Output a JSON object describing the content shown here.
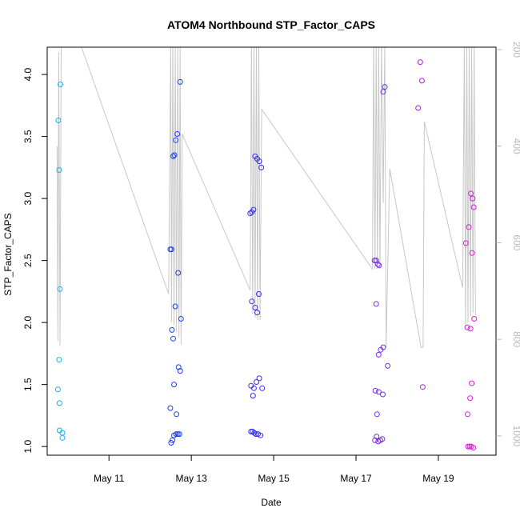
{
  "chart_data": {
    "type": "scatter",
    "title": "ATOM4 Northbound STP_Factor_CAPS",
    "xlabel": "Date",
    "ylabel": "STP_Factor_CAPS",
    "xlim": [
      9.5,
      20.4
    ],
    "ylim": [
      0.93,
      4.22
    ],
    "y2lim": [
      1040,
      195
    ],
    "x_ticks": [
      11,
      13,
      15,
      17,
      19
    ],
    "x_tick_labels": [
      "May 11",
      "May 13",
      "May 15",
      "May 17",
      "May 19"
    ],
    "y_ticks": [
      1.0,
      1.5,
      2.0,
      2.5,
      3.0,
      3.5,
      4.0
    ],
    "y_tick_labels": [
      "1.0",
      "1.5",
      "2.0",
      "2.5",
      "3.0",
      "3.5",
      "4.0"
    ],
    "y2_ticks": [
      200,
      400,
      600,
      800,
      1000
    ],
    "y2_tick_labels": [
      "200",
      "400",
      "600",
      "800",
      "1000"
    ],
    "colors": {
      "line": "#c8c8c8",
      "right_axis": "#b8b8b8",
      "day_palette": [
        "#19aeee",
        "#1f3fee",
        "#3a2ef0",
        "#7a2ee0",
        "#b020e0",
        "#d81ed8"
      ]
    },
    "series": [
      {
        "name": "points",
        "points": [
          {
            "x": 9.77,
            "y": 3.63,
            "d": 0
          },
          {
            "x": 9.79,
            "y": 3.23,
            "d": 0
          },
          {
            "x": 9.82,
            "y": 3.92,
            "d": 0
          },
          {
            "x": 9.81,
            "y": 2.27,
            "d": 0
          },
          {
            "x": 9.79,
            "y": 1.7,
            "d": 0
          },
          {
            "x": 9.76,
            "y": 1.46,
            "d": 0
          },
          {
            "x": 9.8,
            "y": 1.35,
            "d": 0
          },
          {
            "x": 9.8,
            "y": 1.13,
            "d": 0
          },
          {
            "x": 9.87,
            "y": 1.11,
            "d": 0
          },
          {
            "x": 9.87,
            "y": 1.07,
            "d": 0
          },
          {
            "x": 12.49,
            "y": 2.59,
            "d": 1
          },
          {
            "x": 12.52,
            "y": 2.59,
            "d": 1
          },
          {
            "x": 12.53,
            "y": 1.94,
            "d": 1
          },
          {
            "x": 12.56,
            "y": 3.34,
            "d": 1
          },
          {
            "x": 12.59,
            "y": 3.35,
            "d": 1
          },
          {
            "x": 12.62,
            "y": 3.47,
            "d": 1
          },
          {
            "x": 12.66,
            "y": 3.52,
            "d": 1
          },
          {
            "x": 12.73,
            "y": 3.94,
            "d": 1
          },
          {
            "x": 12.56,
            "y": 1.87,
            "d": 1
          },
          {
            "x": 12.61,
            "y": 2.13,
            "d": 1
          },
          {
            "x": 12.68,
            "y": 2.4,
            "d": 1
          },
          {
            "x": 12.75,
            "y": 2.03,
            "d": 1
          },
          {
            "x": 12.69,
            "y": 1.64,
            "d": 1
          },
          {
            "x": 12.73,
            "y": 1.61,
            "d": 1
          },
          {
            "x": 12.58,
            "y": 1.5,
            "d": 1
          },
          {
            "x": 12.49,
            "y": 1.31,
            "d": 1
          },
          {
            "x": 12.64,
            "y": 1.26,
            "d": 1
          },
          {
            "x": 12.51,
            "y": 1.03,
            "d": 1
          },
          {
            "x": 12.54,
            "y": 1.05,
            "d": 1
          },
          {
            "x": 12.58,
            "y": 1.09,
            "d": 1
          },
          {
            "x": 12.63,
            "y": 1.1,
            "d": 1
          },
          {
            "x": 12.67,
            "y": 1.1,
            "d": 1
          },
          {
            "x": 12.71,
            "y": 1.1,
            "d": 1
          },
          {
            "x": 14.43,
            "y": 2.88,
            "d": 2
          },
          {
            "x": 14.47,
            "y": 2.89,
            "d": 2
          },
          {
            "x": 14.51,
            "y": 2.91,
            "d": 2
          },
          {
            "x": 14.55,
            "y": 3.34,
            "d": 2
          },
          {
            "x": 14.6,
            "y": 3.32,
            "d": 2
          },
          {
            "x": 14.65,
            "y": 3.3,
            "d": 2
          },
          {
            "x": 14.7,
            "y": 3.25,
            "d": 2
          },
          {
            "x": 14.47,
            "y": 2.17,
            "d": 2
          },
          {
            "x": 14.55,
            "y": 2.12,
            "d": 2
          },
          {
            "x": 14.6,
            "y": 2.08,
            "d": 2
          },
          {
            "x": 14.64,
            "y": 2.23,
            "d": 2
          },
          {
            "x": 14.45,
            "y": 1.49,
            "d": 2
          },
          {
            "x": 14.5,
            "y": 1.41,
            "d": 2
          },
          {
            "x": 14.52,
            "y": 1.47,
            "d": 2
          },
          {
            "x": 14.58,
            "y": 1.52,
            "d": 2
          },
          {
            "x": 14.65,
            "y": 1.55,
            "d": 2
          },
          {
            "x": 14.72,
            "y": 1.47,
            "d": 2
          },
          {
            "x": 14.45,
            "y": 1.12,
            "d": 2
          },
          {
            "x": 14.49,
            "y": 1.12,
            "d": 2
          },
          {
            "x": 14.53,
            "y": 1.11,
            "d": 2
          },
          {
            "x": 14.57,
            "y": 1.1,
            "d": 2
          },
          {
            "x": 14.62,
            "y": 1.1,
            "d": 2
          },
          {
            "x": 14.68,
            "y": 1.09,
            "d": 2
          },
          {
            "x": 17.45,
            "y": 2.5,
            "d": 3
          },
          {
            "x": 17.49,
            "y": 2.5,
            "d": 3
          },
          {
            "x": 17.53,
            "y": 2.47,
            "d": 3
          },
          {
            "x": 17.56,
            "y": 2.46,
            "d": 3
          },
          {
            "x": 17.66,
            "y": 3.86,
            "d": 3
          },
          {
            "x": 17.7,
            "y": 3.9,
            "d": 3
          },
          {
            "x": 17.49,
            "y": 2.15,
            "d": 3
          },
          {
            "x": 17.55,
            "y": 1.74,
            "d": 3
          },
          {
            "x": 17.6,
            "y": 1.78,
            "d": 3
          },
          {
            "x": 17.66,
            "y": 1.8,
            "d": 3
          },
          {
            "x": 17.77,
            "y": 1.65,
            "d": 3
          },
          {
            "x": 17.47,
            "y": 1.45,
            "d": 3
          },
          {
            "x": 17.55,
            "y": 1.44,
            "d": 3
          },
          {
            "x": 17.65,
            "y": 1.42,
            "d": 3
          },
          {
            "x": 17.51,
            "y": 1.26,
            "d": 3
          },
          {
            "x": 17.46,
            "y": 1.05,
            "d": 3
          },
          {
            "x": 17.5,
            "y": 1.08,
            "d": 3
          },
          {
            "x": 17.54,
            "y": 1.04,
            "d": 3
          },
          {
            "x": 17.59,
            "y": 1.05,
            "d": 3
          },
          {
            "x": 17.64,
            "y": 1.06,
            "d": 3
          },
          {
            "x": 18.56,
            "y": 4.1,
            "d": 4
          },
          {
            "x": 18.6,
            "y": 3.95,
            "d": 4
          },
          {
            "x": 18.51,
            "y": 3.73,
            "d": 4
          },
          {
            "x": 18.62,
            "y": 1.48,
            "d": 4
          },
          {
            "x": 19.67,
            "y": 2.64,
            "d": 5
          },
          {
            "x": 19.74,
            "y": 2.77,
            "d": 5
          },
          {
            "x": 19.79,
            "y": 3.04,
            "d": 5
          },
          {
            "x": 19.83,
            "y": 3.0,
            "d": 5
          },
          {
            "x": 19.86,
            "y": 2.93,
            "d": 5
          },
          {
            "x": 19.82,
            "y": 2.56,
            "d": 5
          },
          {
            "x": 19.7,
            "y": 1.96,
            "d": 5
          },
          {
            "x": 19.78,
            "y": 1.95,
            "d": 5
          },
          {
            "x": 19.87,
            "y": 2.03,
            "d": 5
          },
          {
            "x": 19.81,
            "y": 1.51,
            "d": 5
          },
          {
            "x": 19.77,
            "y": 1.39,
            "d": 5
          },
          {
            "x": 19.71,
            "y": 1.26,
            "d": 5
          },
          {
            "x": 19.72,
            "y": 1.0,
            "d": 5
          },
          {
            "x": 19.76,
            "y": 1.0,
            "d": 5
          },
          {
            "x": 19.8,
            "y": 1.0,
            "d": 5
          },
          {
            "x": 19.85,
            "y": 0.99,
            "d": 5
          }
        ]
      },
      {
        "name": "line",
        "points": [
          [
            9.74,
            3.42
          ],
          [
            9.76,
            1.85
          ],
          [
            9.78,
            4.18
          ],
          [
            9.81,
            1.81
          ],
          [
            9.84,
            4.25
          ],
          [
            10.3,
            4.25
          ],
          [
            12.45,
            2.23
          ],
          [
            12.5,
            4.25
          ],
          [
            12.52,
            2.0
          ],
          [
            12.55,
            4.25
          ],
          [
            12.58,
            1.98
          ],
          [
            12.61,
            4.25
          ],
          [
            12.64,
            1.92
          ],
          [
            12.67,
            4.25
          ],
          [
            12.7,
            1.88
          ],
          [
            12.73,
            4.25
          ],
          [
            12.75,
            1.82
          ],
          [
            12.78,
            3.52
          ],
          [
            14.43,
            2.26
          ],
          [
            14.46,
            4.25
          ],
          [
            14.49,
            2.07
          ],
          [
            14.52,
            4.25
          ],
          [
            14.55,
            2.04
          ],
          [
            14.58,
            4.25
          ],
          [
            14.61,
            2.02
          ],
          [
            14.64,
            4.25
          ],
          [
            14.67,
            2.02
          ],
          [
            14.71,
            3.72
          ],
          [
            17.4,
            2.43
          ],
          [
            17.43,
            4.25
          ],
          [
            17.46,
            2.43
          ],
          [
            17.49,
            4.25
          ],
          [
            17.52,
            2.43
          ],
          [
            17.55,
            4.25
          ],
          [
            17.58,
            2.43
          ],
          [
            17.62,
            4.25
          ],
          [
            17.66,
            2.96
          ],
          [
            17.7,
            4.25
          ],
          [
            17.73,
            1.8
          ],
          [
            17.82,
            3.24
          ],
          [
            18.58,
            1.8
          ],
          [
            18.63,
            1.8
          ],
          [
            18.66,
            3.62
          ],
          [
            19.59,
            2.28
          ],
          [
            19.63,
            4.25
          ],
          [
            19.66,
            1.95
          ],
          [
            19.69,
            4.25
          ],
          [
            19.72,
            2.0
          ],
          [
            19.75,
            4.25
          ],
          [
            19.78,
            2.05
          ],
          [
            19.81,
            4.25
          ],
          [
            19.84,
            2.08
          ],
          [
            19.87,
            4.25
          ],
          [
            19.9,
            2.06
          ]
        ]
      }
    ]
  }
}
